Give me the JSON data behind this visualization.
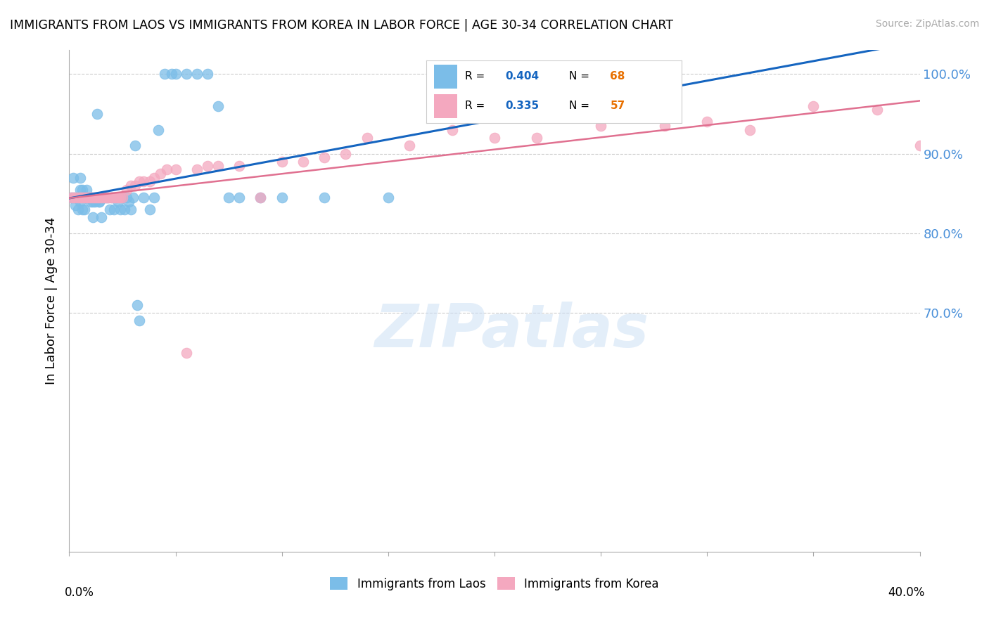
{
  "title": "IMMIGRANTS FROM LAOS VS IMMIGRANTS FROM KOREA IN LABOR FORCE | AGE 30-34 CORRELATION CHART",
  "source": "Source: ZipAtlas.com",
  "ylabel": "In Labor Force | Age 30-34",
  "xmin": 0.0,
  "xmax": 0.4,
  "ymin": 0.4,
  "ymax": 1.03,
  "y_ticks": [
    1.0,
    0.9,
    0.8,
    0.7
  ],
  "y_tick_labels": [
    "100.0%",
    "90.0%",
    "80.0%",
    "70.0%"
  ],
  "laos_color": "#7bbde8",
  "korea_color": "#f4a8bf",
  "trend_blue": "#1565c0",
  "trend_pink": "#e07090",
  "watermark_text": "ZIPatlas",
  "legend_label_laos": "Immigrants from Laos",
  "legend_label_korea": "Immigrants from Korea",
  "laos_r": "0.404",
  "laos_n": "68",
  "korea_r": "0.335",
  "korea_n": "57",
  "r_color": "#1565c0",
  "n_color": "#e87000",
  "laos_x": [
    0.001,
    0.002,
    0.002,
    0.003,
    0.003,
    0.004,
    0.004,
    0.005,
    0.005,
    0.005,
    0.006,
    0.006,
    0.006,
    0.007,
    0.007,
    0.008,
    0.008,
    0.009,
    0.009,
    0.01,
    0.01,
    0.01,
    0.011,
    0.011,
    0.011,
    0.012,
    0.012,
    0.013,
    0.013,
    0.014,
    0.014,
    0.015,
    0.015,
    0.016,
    0.017,
    0.018,
    0.019,
    0.02,
    0.021,
    0.022,
    0.023,
    0.024,
    0.025,
    0.026,
    0.027,
    0.028,
    0.029,
    0.03,
    0.031,
    0.032,
    0.033,
    0.035,
    0.038,
    0.04,
    0.042,
    0.045,
    0.048,
    0.05,
    0.055,
    0.06,
    0.065,
    0.07,
    0.075,
    0.08,
    0.09,
    0.1,
    0.12,
    0.15
  ],
  "laos_y": [
    0.845,
    0.87,
    0.845,
    0.845,
    0.835,
    0.845,
    0.83,
    0.84,
    0.855,
    0.87,
    0.845,
    0.83,
    0.855,
    0.83,
    0.845,
    0.845,
    0.855,
    0.845,
    0.845,
    0.845,
    0.845,
    0.84,
    0.845,
    0.82,
    0.84,
    0.84,
    0.845,
    0.95,
    0.845,
    0.84,
    0.84,
    0.845,
    0.82,
    0.845,
    0.845,
    0.845,
    0.83,
    0.845,
    0.83,
    0.845,
    0.84,
    0.83,
    0.845,
    0.83,
    0.845,
    0.84,
    0.83,
    0.845,
    0.91,
    0.71,
    0.69,
    0.845,
    0.83,
    0.845,
    0.93,
    1.0,
    1.0,
    1.0,
    1.0,
    1.0,
    1.0,
    0.96,
    0.845,
    0.845,
    0.845,
    0.845,
    0.845,
    0.845
  ],
  "korea_x": [
    0.001,
    0.002,
    0.003,
    0.004,
    0.005,
    0.006,
    0.007,
    0.008,
    0.009,
    0.01,
    0.011,
    0.012,
    0.013,
    0.014,
    0.015,
    0.016,
    0.017,
    0.018,
    0.019,
    0.02,
    0.021,
    0.022,
    0.023,
    0.024,
    0.025,
    0.027,
    0.029,
    0.031,
    0.033,
    0.035,
    0.038,
    0.04,
    0.043,
    0.046,
    0.05,
    0.055,
    0.06,
    0.065,
    0.07,
    0.08,
    0.09,
    0.1,
    0.11,
    0.12,
    0.13,
    0.14,
    0.16,
    0.18,
    0.2,
    0.22,
    0.25,
    0.28,
    0.3,
    0.32,
    0.35,
    0.38,
    0.4
  ],
  "korea_y": [
    0.845,
    0.845,
    0.845,
    0.845,
    0.845,
    0.845,
    0.845,
    0.845,
    0.845,
    0.845,
    0.845,
    0.845,
    0.845,
    0.845,
    0.845,
    0.845,
    0.845,
    0.845,
    0.845,
    0.845,
    0.845,
    0.845,
    0.845,
    0.845,
    0.845,
    0.855,
    0.86,
    0.86,
    0.865,
    0.865,
    0.865,
    0.87,
    0.875,
    0.88,
    0.88,
    0.65,
    0.88,
    0.885,
    0.885,
    0.885,
    0.845,
    0.89,
    0.89,
    0.895,
    0.9,
    0.92,
    0.91,
    0.93,
    0.92,
    0.92,
    0.935,
    0.935,
    0.94,
    0.93,
    0.96,
    0.955,
    0.91
  ]
}
